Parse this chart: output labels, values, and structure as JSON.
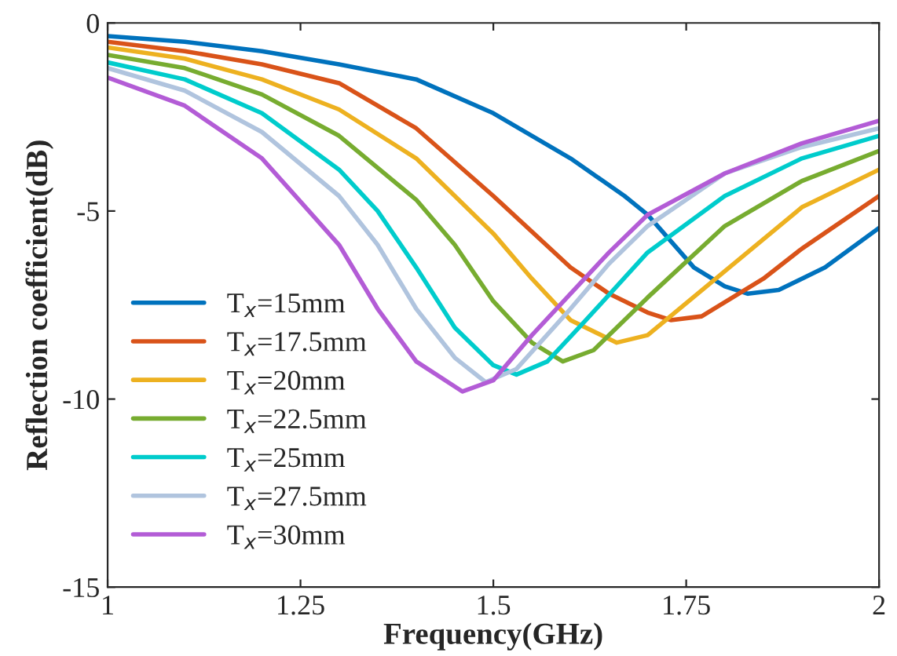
{
  "chart_data": {
    "type": "line",
    "xlabel": "Frequency(GHz)",
    "ylabel": "Reflection coefficient(dB)",
    "xlim": [
      1,
      2
    ],
    "ylim": [
      -15,
      0
    ],
    "xticks": [
      1,
      1.25,
      1.5,
      1.75,
      2
    ],
    "yticks": [
      -15,
      -10,
      -5,
      0
    ],
    "grid": false,
    "legend": "lower left",
    "line_style": "solid",
    "marker": "none",
    "series": [
      {
        "name": "T$_{x}$=15mm",
        "color": "#0072bd",
        "x": [
          1.0,
          1.1,
          1.2,
          1.3,
          1.4,
          1.5,
          1.6,
          1.67,
          1.7,
          1.76,
          1.8,
          1.83,
          1.87,
          1.93,
          2.0
        ],
        "values": [
          -0.35,
          -0.5,
          -0.75,
          -1.1,
          -1.5,
          -2.4,
          -3.6,
          -4.6,
          -5.1,
          -6.5,
          -7.0,
          -7.2,
          -7.1,
          -6.5,
          -5.45
        ]
      },
      {
        "name": "T$_{x}$=17.5mm",
        "color": "#d95319",
        "x": [
          1.0,
          1.1,
          1.2,
          1.3,
          1.4,
          1.5,
          1.6,
          1.65,
          1.7,
          1.73,
          1.77,
          1.85,
          1.9,
          2.0
        ],
        "values": [
          -0.5,
          -0.75,
          -1.1,
          -1.6,
          -2.8,
          -4.6,
          -6.5,
          -7.2,
          -7.7,
          -7.9,
          -7.8,
          -6.8,
          -6.0,
          -4.6
        ]
      },
      {
        "name": "T$_{x}$=20mm",
        "color": "#edb120",
        "x": [
          1.0,
          1.1,
          1.2,
          1.3,
          1.4,
          1.5,
          1.55,
          1.6,
          1.66,
          1.7,
          1.8,
          1.9,
          2.0
        ],
        "values": [
          -0.65,
          -0.95,
          -1.5,
          -2.3,
          -3.6,
          -5.6,
          -6.8,
          -7.9,
          -8.5,
          -8.3,
          -6.6,
          -4.9,
          -3.9
        ]
      },
      {
        "name": "T$_{x}$=22.5mm",
        "color": "#77ac30",
        "x": [
          1.0,
          1.1,
          1.2,
          1.3,
          1.4,
          1.45,
          1.5,
          1.55,
          1.59,
          1.63,
          1.7,
          1.8,
          1.9,
          2.0
        ],
        "values": [
          -0.85,
          -1.2,
          -1.9,
          -3.0,
          -4.7,
          -5.9,
          -7.4,
          -8.5,
          -9.0,
          -8.7,
          -7.3,
          -5.4,
          -4.2,
          -3.4
        ]
      },
      {
        "name": "T$_{x}$=25mm",
        "color": "#00cccc",
        "x": [
          1.0,
          1.1,
          1.2,
          1.3,
          1.35,
          1.4,
          1.45,
          1.5,
          1.53,
          1.57,
          1.62,
          1.7,
          1.8,
          1.9,
          2.0
        ],
        "values": [
          -1.05,
          -1.5,
          -2.4,
          -3.9,
          -5.0,
          -6.5,
          -8.1,
          -9.1,
          -9.35,
          -9.0,
          -7.9,
          -6.1,
          -4.6,
          -3.6,
          -3.0
        ]
      },
      {
        "name": "T$_{x}$=27.5mm",
        "color": "#b0c4de",
        "x": [
          1.0,
          1.1,
          1.2,
          1.3,
          1.35,
          1.4,
          1.45,
          1.49,
          1.53,
          1.6,
          1.65,
          1.7,
          1.8,
          1.9,
          2.0
        ],
        "values": [
          -1.2,
          -1.8,
          -2.9,
          -4.6,
          -5.9,
          -7.6,
          -8.9,
          -9.55,
          -9.2,
          -7.6,
          -6.4,
          -5.4,
          -4.0,
          -3.3,
          -2.8
        ]
      },
      {
        "name": "T$_{x}$=30mm",
        "color": "#b35cd6",
        "x": [
          1.0,
          1.1,
          1.2,
          1.3,
          1.35,
          1.4,
          1.46,
          1.5,
          1.55,
          1.6,
          1.65,
          1.7,
          1.8,
          1.9,
          2.0
        ],
        "values": [
          -1.45,
          -2.2,
          -3.6,
          -5.9,
          -7.6,
          -9.0,
          -9.8,
          -9.5,
          -8.3,
          -7.2,
          -6.1,
          -5.1,
          -4.0,
          -3.2,
          -2.6
        ]
      }
    ]
  }
}
